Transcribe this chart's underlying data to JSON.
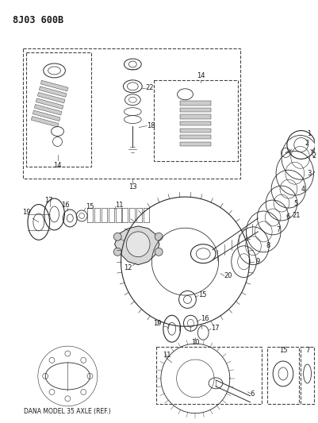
{
  "title": "8J03 600B",
  "bg_color": "#ffffff",
  "fig_width": 4.01,
  "fig_height": 5.33,
  "dpi": 100,
  "line_color": "#2a2a2a",
  "text_color": "#1a1a1a",
  "title_fontsize": 8.5,
  "label_fontsize": 6.0,
  "dana_fontsize": 5.5,
  "dana_label": "DANA MODEL 35 AXLE (REF.)"
}
